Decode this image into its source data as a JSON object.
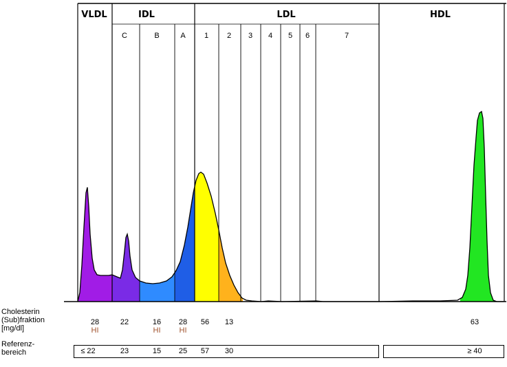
{
  "chart_data": {
    "type": "area",
    "groups": [
      {
        "name": "VLDL"
      },
      {
        "name": "IDL",
        "sub": [
          "C",
          "B",
          "A"
        ]
      },
      {
        "name": "LDL",
        "sub": [
          "1",
          "2",
          "3",
          "4",
          "5",
          "6",
          "7"
        ]
      },
      {
        "name": "HDL"
      }
    ],
    "fractions": [
      "VLDL",
      "C",
      "B",
      "A",
      "1",
      "2",
      "HDL"
    ],
    "values": [
      "28",
      "22",
      "16",
      "28",
      "56",
      "13",
      "63"
    ],
    "flags": [
      "HI",
      "",
      "HI",
      "HI",
      "",
      "",
      ""
    ],
    "reference": [
      "≤ 22",
      "23",
      "15",
      "25",
      "57",
      "30",
      "≥ 40"
    ],
    "colors": {
      "VLDL": "#a11ce6",
      "C": "#7a2be6",
      "B": "#2f8bff",
      "A": "#1f5ee6",
      "1": "#ffff00",
      "2": "#ffb21c",
      "HDL": "#22e622",
      "flag": "#a0522d"
    }
  },
  "labels": {
    "row_value": [
      "Cholesterin",
      "(Sub)fraktion",
      "[mg/dl]"
    ],
    "row_reference": [
      "Referenz-",
      "bereich"
    ]
  }
}
